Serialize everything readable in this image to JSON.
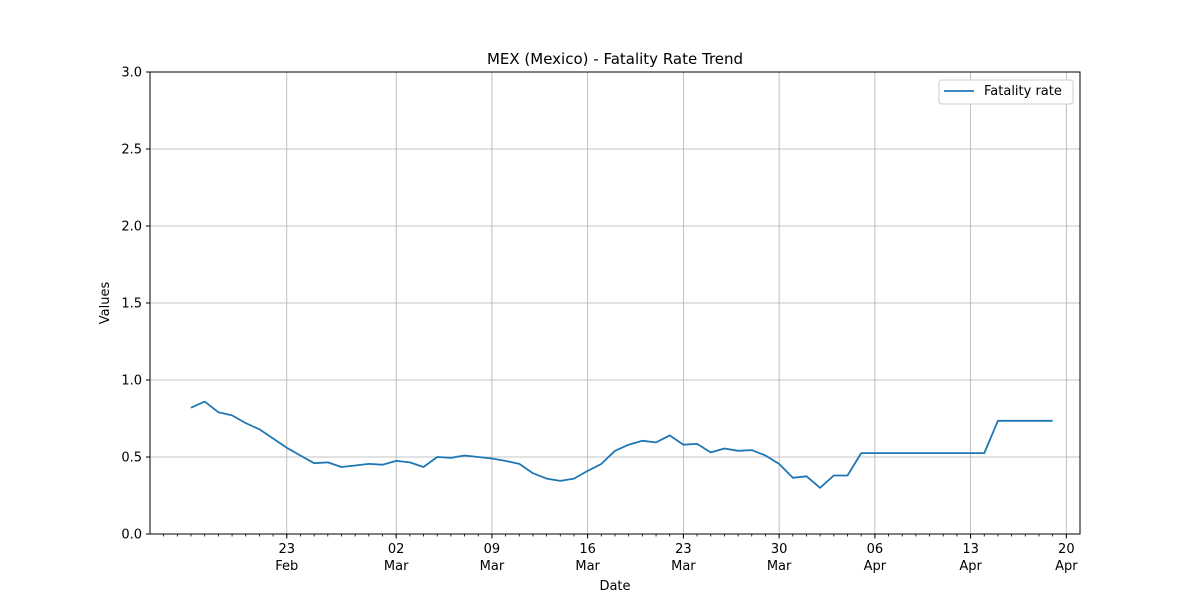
{
  "chart_data": {
    "type": "line",
    "title": "MEX (Mexico) - Fatality Rate Trend",
    "xlabel": "Date",
    "ylabel": "Values",
    "ylim": [
      0,
      3.0
    ],
    "xlim": [
      "2020-02-13",
      "2020-04-21"
    ],
    "grid": true,
    "legend_position": "top-right",
    "y_ticks": [
      "0.0",
      "0.5",
      "1.0",
      "1.5",
      "2.0",
      "2.5",
      "3.0"
    ],
    "x_major_ticks": [
      {
        "date": "2020-02-23",
        "day": "23",
        "month": "Feb"
      },
      {
        "date": "2020-03-02",
        "day": "02",
        "month": "Mar"
      },
      {
        "date": "2020-03-09",
        "day": "09",
        "month": "Mar"
      },
      {
        "date": "2020-03-16",
        "day": "16",
        "month": "Mar"
      },
      {
        "date": "2020-03-23",
        "day": "23",
        "month": "Mar"
      },
      {
        "date": "2020-03-30",
        "day": "30",
        "month": "Mar"
      },
      {
        "date": "2020-04-06",
        "day": "06",
        "month": "Apr"
      },
      {
        "date": "2020-04-13",
        "day": "13",
        "month": "Apr"
      },
      {
        "date": "2020-04-20",
        "day": "20",
        "month": "Apr"
      }
    ],
    "series": [
      {
        "name": "Fatality rate",
        "color": "#1f77b4",
        "x": [
          "2020-02-16",
          "2020-02-17",
          "2020-02-18",
          "2020-02-19",
          "2020-02-20",
          "2020-02-21",
          "2020-02-22",
          "2020-02-23",
          "2020-02-24",
          "2020-02-25",
          "2020-02-26",
          "2020-02-27",
          "2020-02-28",
          "2020-02-29",
          "2020-03-01",
          "2020-03-02",
          "2020-03-03",
          "2020-03-04",
          "2020-03-05",
          "2020-03-06",
          "2020-03-07",
          "2020-03-08",
          "2020-03-09",
          "2020-03-10",
          "2020-03-11",
          "2020-03-12",
          "2020-03-13",
          "2020-03-14",
          "2020-03-15",
          "2020-03-16",
          "2020-03-17",
          "2020-03-18",
          "2020-03-19",
          "2020-03-20",
          "2020-03-21",
          "2020-03-22",
          "2020-03-23",
          "2020-03-24",
          "2020-03-25",
          "2020-03-26",
          "2020-03-27",
          "2020-03-28",
          "2020-03-29",
          "2020-03-30",
          "2020-03-31",
          "2020-04-01",
          "2020-04-02",
          "2020-04-03",
          "2020-04-04",
          "2020-04-05",
          "2020-04-06",
          "2020-04-07",
          "2020-04-08",
          "2020-04-09",
          "2020-04-10",
          "2020-04-11",
          "2020-04-12",
          "2020-04-13",
          "2020-04-14",
          "2020-04-15",
          "2020-04-16",
          "2020-04-17",
          "2020-04-18",
          "2020-04-19"
        ],
        "values": [
          0.82,
          0.86,
          0.79,
          0.77,
          0.72,
          0.68,
          0.62,
          0.56,
          0.51,
          0.46,
          0.465,
          0.435,
          0.445,
          0.455,
          0.45,
          0.475,
          0.465,
          0.435,
          0.5,
          0.495,
          0.51,
          0.5,
          0.49,
          0.475,
          0.455,
          0.395,
          0.36,
          0.345,
          0.36,
          0.41,
          0.455,
          0.54,
          0.58,
          0.605,
          0.595,
          0.64,
          0.58,
          0.585,
          0.53,
          0.555,
          0.54,
          0.545,
          0.51,
          0.455,
          0.365,
          0.375,
          0.3,
          0.38,
          0.38,
          0.525,
          0.525,
          0.525,
          0.525,
          0.525,
          0.525,
          0.525,
          0.525,
          0.525,
          0.525,
          0.735,
          0.735,
          0.735,
          0.735,
          0.735
        ]
      }
    ]
  }
}
